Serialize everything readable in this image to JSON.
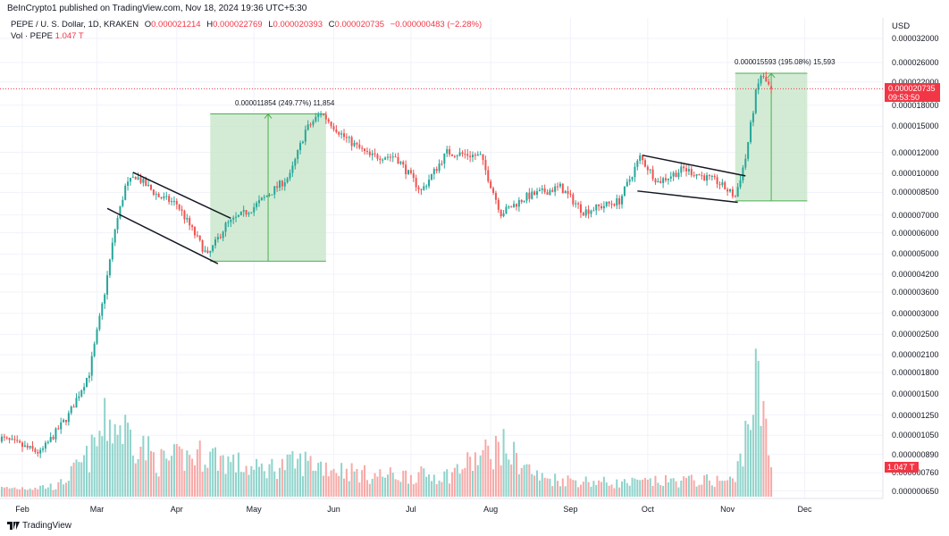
{
  "header": {
    "published": "BeInCrypto1 published on TradingView.com, Nov 18, 2024 19:36 UTC+5:30"
  },
  "legend": {
    "symbol": "PEPE / U. S. Dollar, 1D, KRAKEN",
    "open_label": "O",
    "open": "0.000021214",
    "high_label": "H",
    "high": "0.000022769",
    "low_label": "L",
    "low": "0.000020393",
    "close_label": "C",
    "close": "0.000020735",
    "change": "−0.000000483 (−2.28%)",
    "volume_label": "Vol · PEPE",
    "volume": "1.047 T"
  },
  "price_axis": {
    "currency": "USD",
    "ticks": [
      "0.000032000",
      "0.000026000",
      "0.000022000",
      "0.000018000",
      "0.000015000",
      "0.000012000",
      "0.000010000",
      "0.000008500",
      "0.000007000",
      "0.000006000",
      "0.000005000",
      "0.000004200",
      "0.000003600",
      "0.000003000",
      "0.000002500",
      "0.000002100",
      "0.000001800",
      "0.000001500",
      "0.000001250",
      "0.000001050",
      "0.000000890",
      "0.000000760",
      "0.000000650"
    ],
    "scale": "log",
    "current_price": "0.000020735",
    "countdown": "09:53:50",
    "volume_tag": "1.047 T"
  },
  "time_axis": {
    "months": [
      "Feb",
      "Mar",
      "Apr",
      "May",
      "Jun",
      "Jul",
      "Aug",
      "Sep",
      "Oct",
      "Nov",
      "Dec"
    ]
  },
  "measurements": [
    {
      "label": "0.000011854 (249.77%) 11,854"
    },
    {
      "label": "0.000015593 (195.08%) 15,593"
    }
  ],
  "colors": {
    "up": "#26a69a",
    "down": "#ef5350",
    "vol_up": "#8fd3cb",
    "vol_down": "#f7a9a7",
    "measure_fill": "#c8e6c9",
    "accent": "#f23645"
  },
  "chart_data": {
    "type": "candlestick",
    "start_date": "2024-01-23",
    "end_date": "2024-11-18",
    "price_anchors": [
      [
        "2024-01-23",
        1.03e-06
      ],
      [
        "2024-02-08",
        9e-07
      ],
      [
        "2024-02-19",
        1.25e-06
      ],
      [
        "2024-02-27",
        1.8e-06
      ],
      [
        "2024-03-04",
        3.6e-06
      ],
      [
        "2024-03-08",
        6.2e-06
      ],
      [
        "2024-03-12",
        8.9e-06
      ],
      [
        "2024-03-16",
        9.8e-06
      ],
      [
        "2024-03-25",
        8.2e-06
      ],
      [
        "2024-04-01",
        7.7e-06
      ],
      [
        "2024-04-13",
        4.9e-06
      ],
      [
        "2024-04-20",
        6.4e-06
      ],
      [
        "2024-05-01",
        7.5e-06
      ],
      [
        "2024-05-15",
        9.8e-06
      ],
      [
        "2024-05-21",
        1.45e-05
      ],
      [
        "2024-05-27",
        1.69e-05
      ],
      [
        "2024-06-05",
        1.37e-05
      ],
      [
        "2024-06-15",
        1.16e-05
      ],
      [
        "2024-06-25",
        1.16e-05
      ],
      [
        "2024-07-05",
        8.6e-06
      ],
      [
        "2024-07-15",
        1.2e-05
      ],
      [
        "2024-07-28",
        1.16e-05
      ],
      [
        "2024-08-05",
        7.1e-06
      ],
      [
        "2024-08-15",
        8.2e-06
      ],
      [
        "2024-08-28",
        8.9e-06
      ],
      [
        "2024-09-06",
        7.2e-06
      ],
      [
        "2024-09-20",
        7.9e-06
      ],
      [
        "2024-09-28",
        1.15e-05
      ],
      [
        "2024-10-05",
        9.3e-06
      ],
      [
        "2024-10-15",
        1.04e-05
      ],
      [
        "2024-10-28",
        9.3e-06
      ],
      [
        "2024-11-04",
        8.2e-06
      ],
      [
        "2024-11-08",
        1.14e-05
      ],
      [
        "2024-11-12",
        1.99e-05
      ],
      [
        "2024-11-14",
        2.33e-05
      ],
      [
        "2024-11-18",
        2.07e-05
      ]
    ],
    "volume_anchors_T": [
      [
        "2024-01-23",
        0.3
      ],
      [
        "2024-02-15",
        0.4
      ],
      [
        "2024-02-27",
        1.5
      ],
      [
        "2024-03-05",
        2.8
      ],
      [
        "2024-03-12",
        2.5
      ],
      [
        "2024-03-25",
        1.3
      ],
      [
        "2024-04-13",
        1.6
      ],
      [
        "2024-05-01",
        1.0
      ],
      [
        "2024-05-21",
        1.3
      ],
      [
        "2024-06-15",
        0.8
      ],
      [
        "2024-07-15",
        0.8
      ],
      [
        "2024-08-05",
        1.9
      ],
      [
        "2024-08-20",
        0.7
      ],
      [
        "2024-09-20",
        0.5
      ],
      [
        "2024-10-15",
        0.6
      ],
      [
        "2024-11-04",
        0.6
      ],
      [
        "2024-11-12",
        4.2
      ],
      [
        "2024-11-14",
        3.5
      ],
      [
        "2024-11-18",
        1.047
      ]
    ]
  }
}
